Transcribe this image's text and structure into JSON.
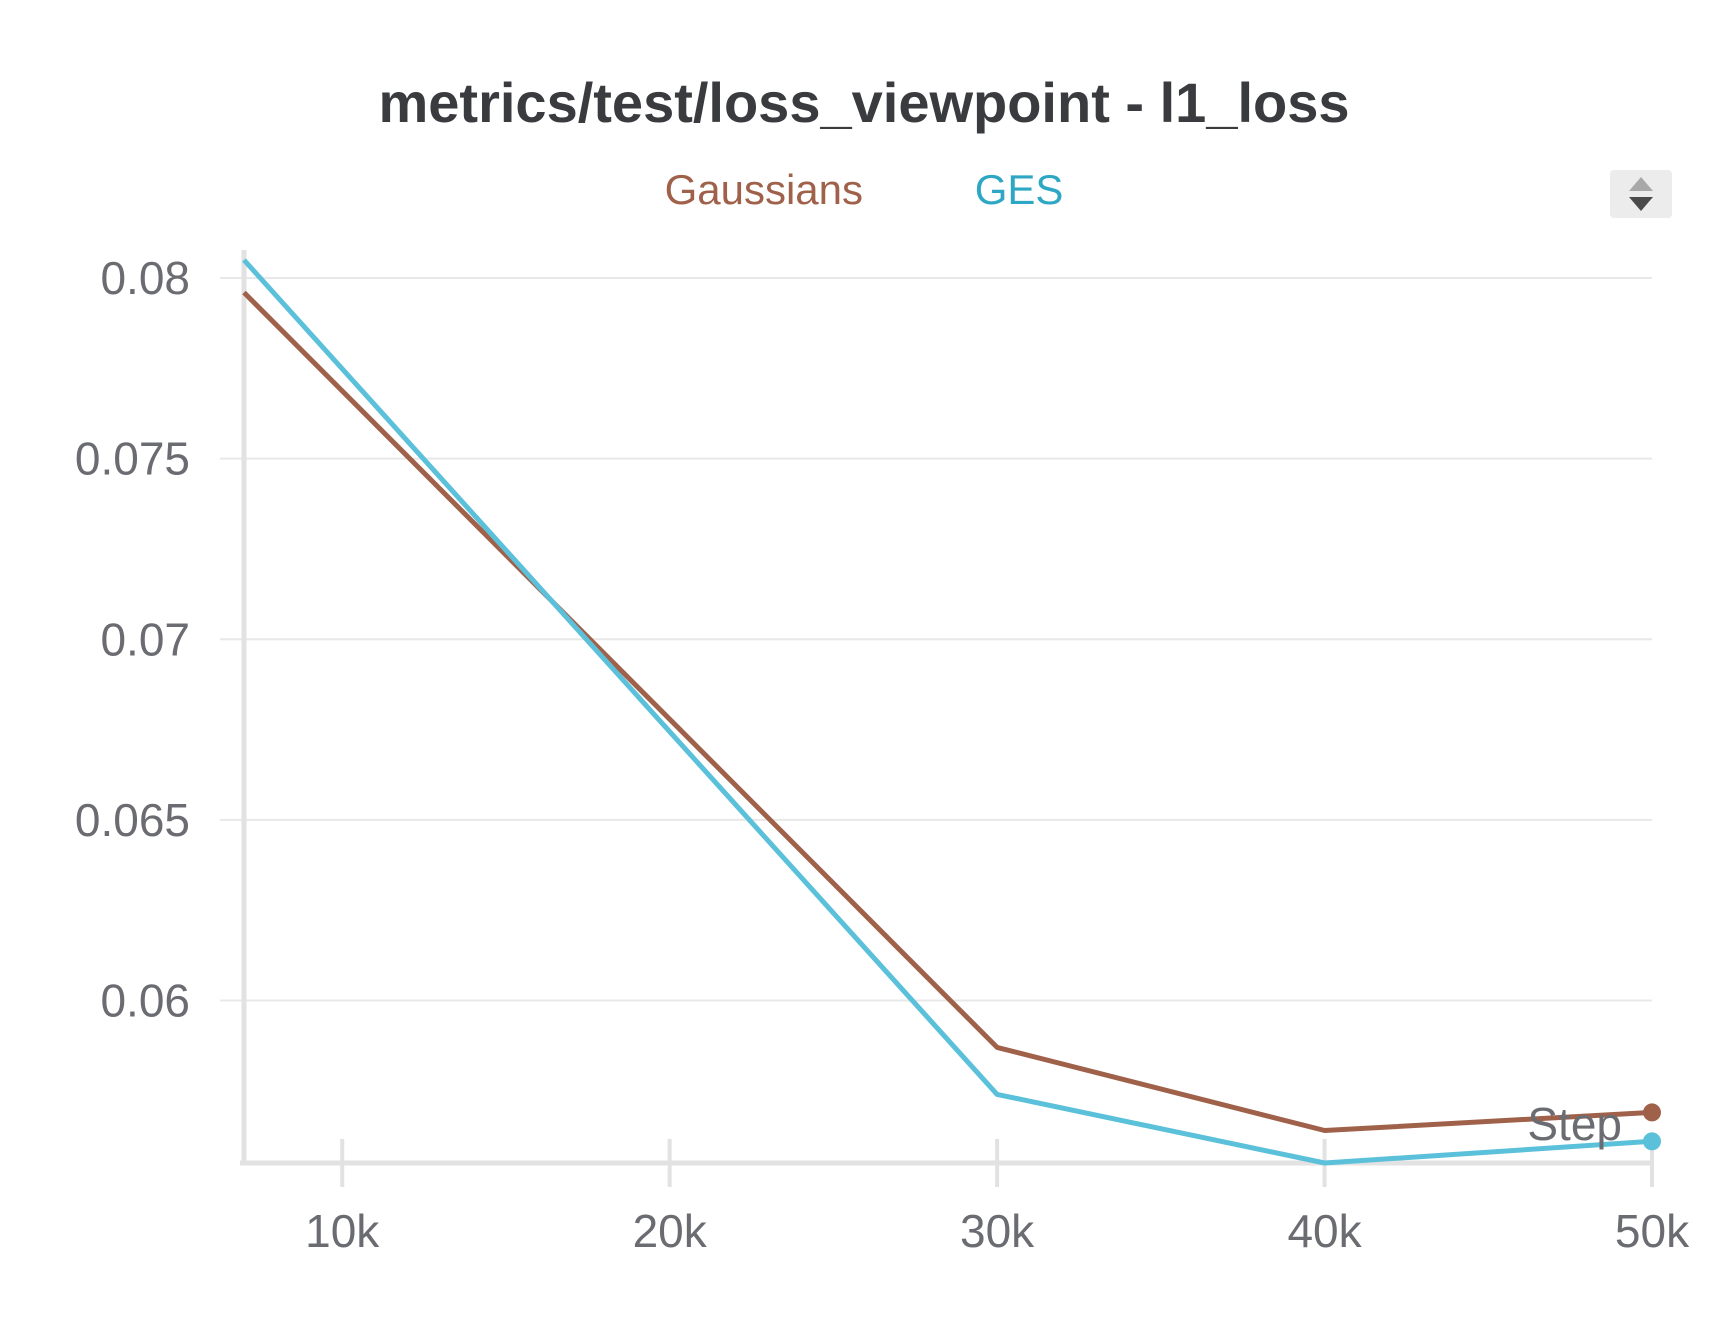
{
  "chart_data": {
    "type": "line",
    "title": "metrics/test/loss_viewpoint - l1_loss",
    "xlabel": "Step",
    "ylabel": "",
    "xlim": [
      7000,
      50000
    ],
    "ylim": [
      0.0555,
      0.0805
    ],
    "x_ticks": [
      {
        "value": 10000,
        "label": "10k"
      },
      {
        "value": 20000,
        "label": "20k"
      },
      {
        "value": 30000,
        "label": "30k"
      },
      {
        "value": 40000,
        "label": "40k"
      },
      {
        "value": 50000,
        "label": "50k"
      }
    ],
    "y_ticks": [
      {
        "value": 0.08,
        "label": "0.08"
      },
      {
        "value": 0.075,
        "label": "0.075"
      },
      {
        "value": 0.07,
        "label": "0.07"
      },
      {
        "value": 0.065,
        "label": "0.065"
      },
      {
        "value": 0.06,
        "label": "0.06"
      }
    ],
    "grid": true,
    "legend_position": "top",
    "series": [
      {
        "name": "Gaussians",
        "color": "#a0614a",
        "x": [
          7000,
          30000,
          40000,
          50000
        ],
        "y": [
          0.0796,
          0.0587,
          0.0564,
          0.0569
        ]
      },
      {
        "name": "GES",
        "color": "#5bc0d9",
        "x": [
          7000,
          30000,
          40000,
          50000
        ],
        "y": [
          0.0805,
          0.0574,
          0.0555,
          0.0561
        ]
      }
    ]
  },
  "legend": {
    "items": [
      {
        "label": "Gaussians",
        "color": "#a0614a"
      },
      {
        "label": "GES",
        "color": "#2da7c4"
      }
    ]
  },
  "scroll_control": {
    "icon": "up-down-arrows-icon"
  }
}
